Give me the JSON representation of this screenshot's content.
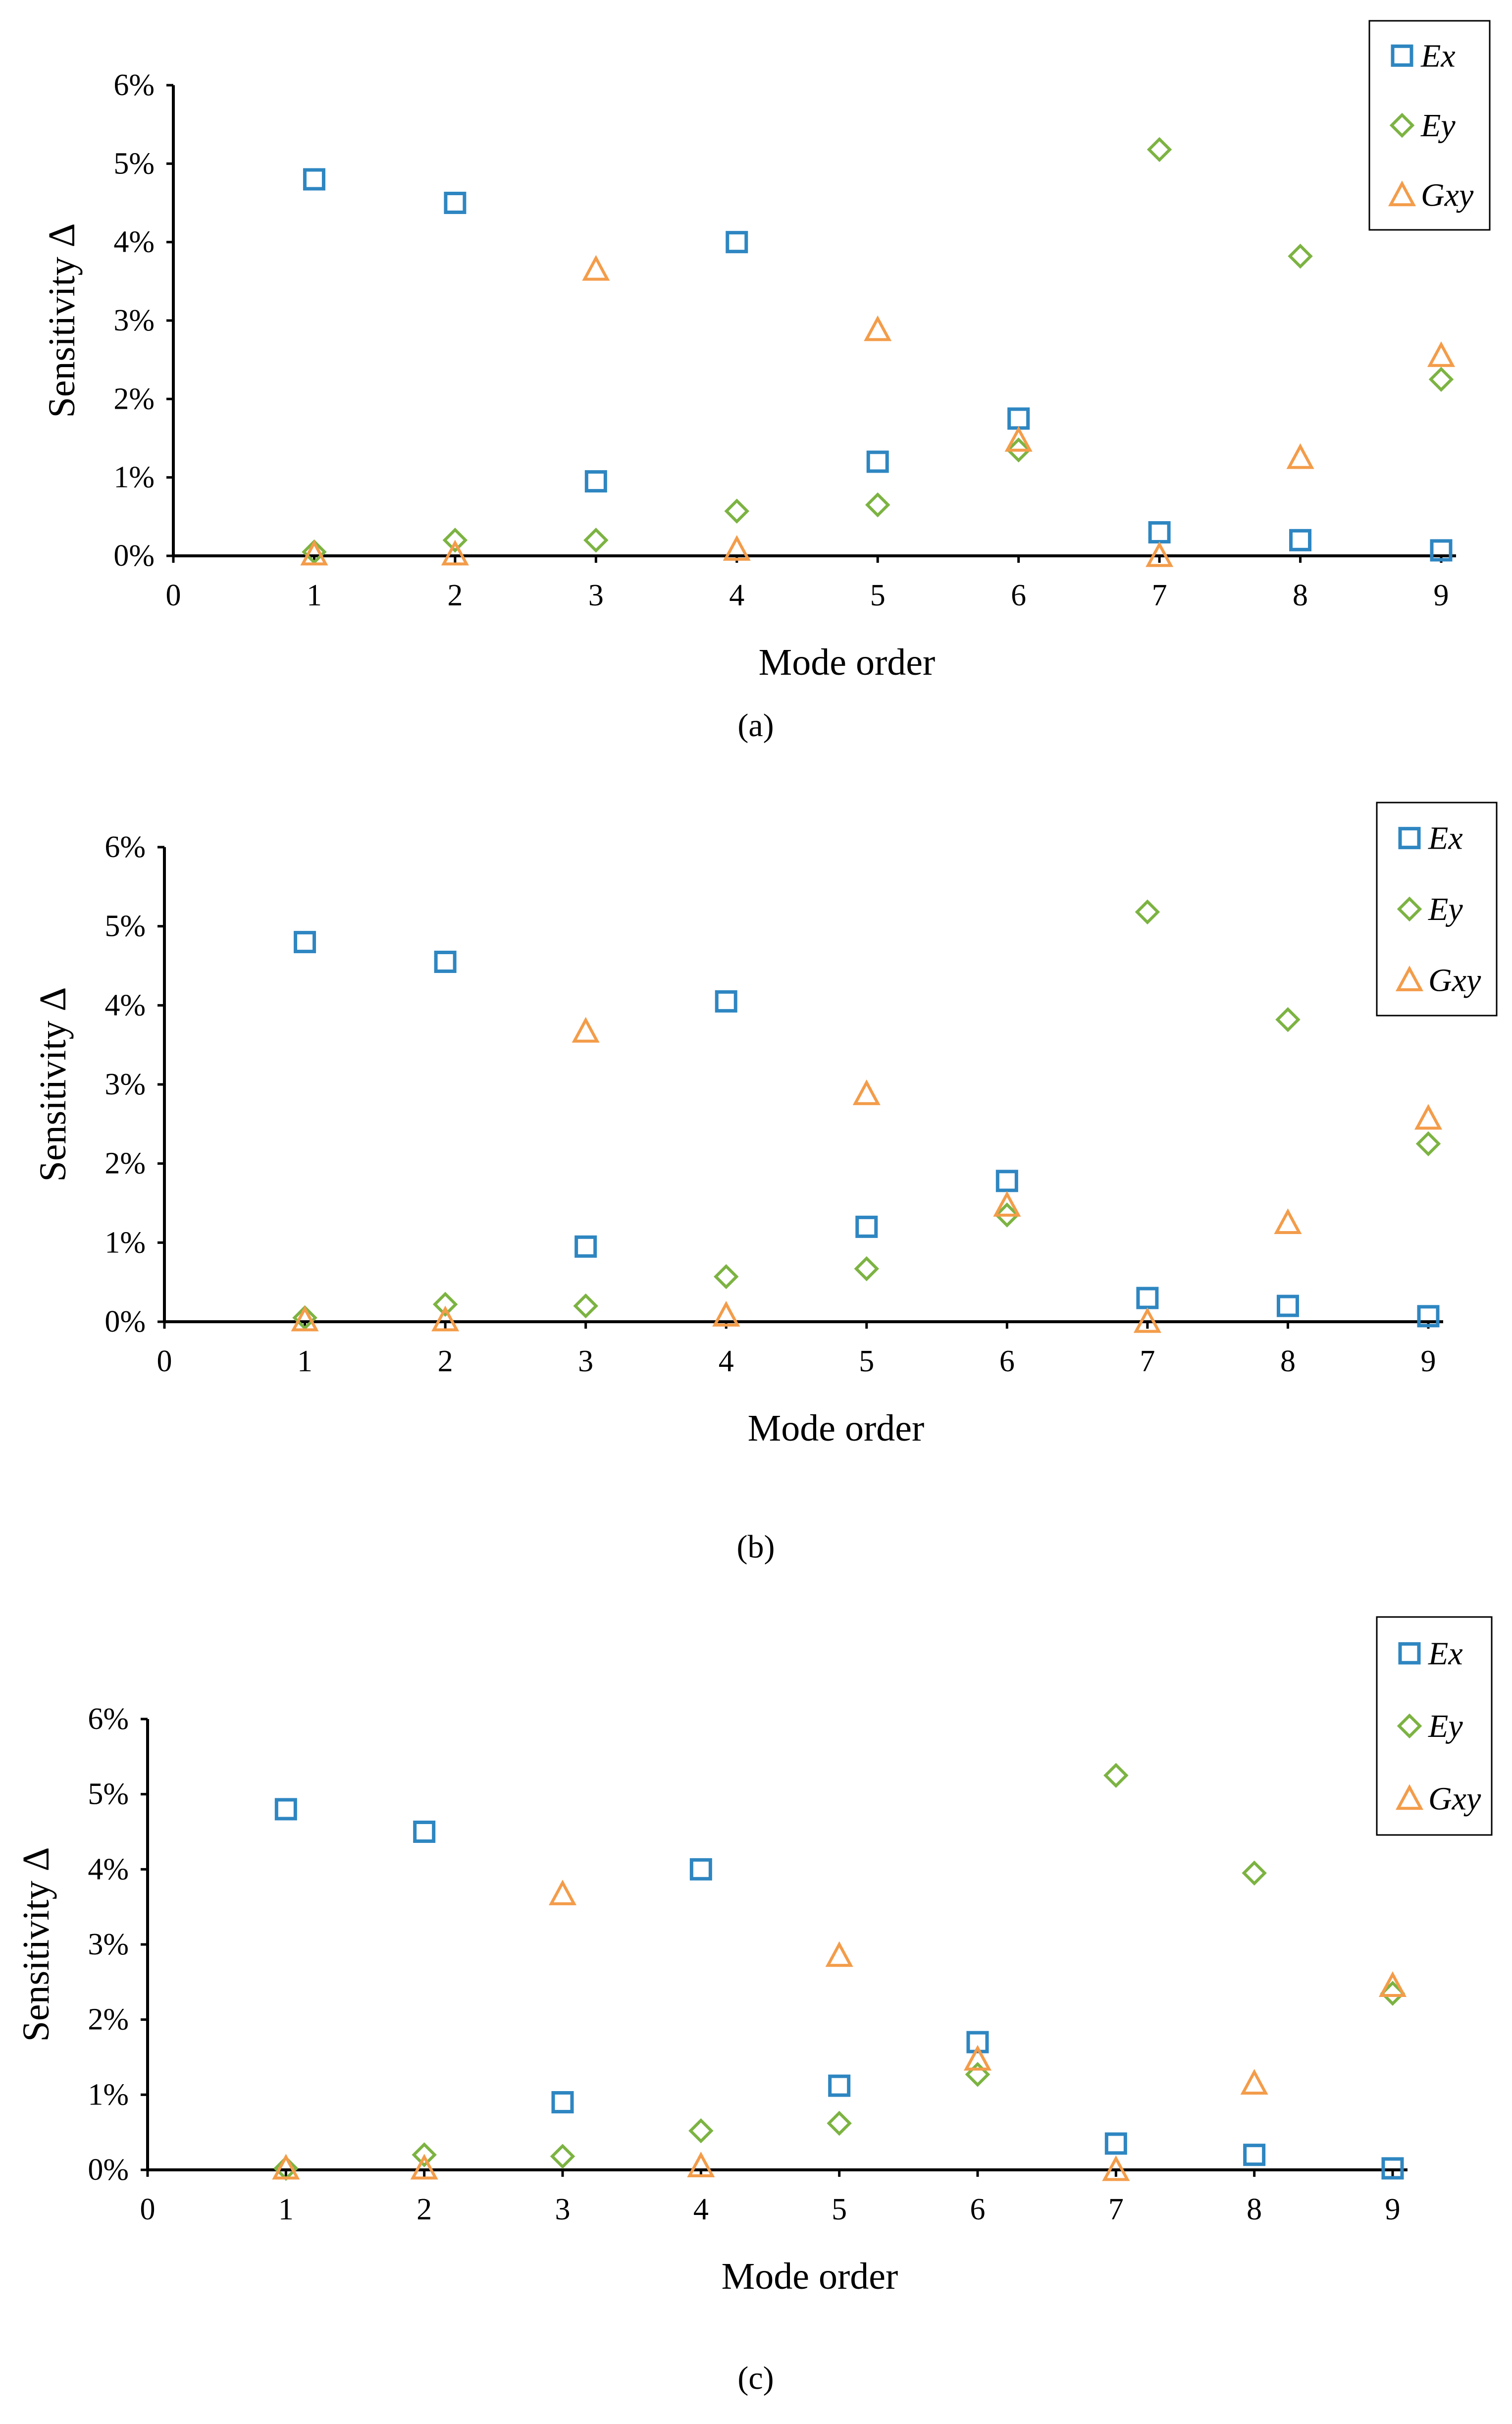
{
  "figure": {
    "panels": [
      "(a)",
      "(b)",
      "(c)"
    ]
  },
  "colors": {
    "Ex": "#2E86C1",
    "Ey": "#7CB342",
    "Gxy": "#F39C4A",
    "axis": "#000000"
  },
  "chart_data": [
    {
      "type": "scatter",
      "caption": "(a)",
      "title": "",
      "xlabel": "Mode order",
      "ylabel": "Sensitivity Δ",
      "xlim": [
        0,
        9
      ],
      "ylim": [
        0,
        6
      ],
      "x_ticks": [
        "0",
        "1",
        "2",
        "3",
        "4",
        "5",
        "6",
        "7",
        "8",
        "9"
      ],
      "y_ticks": [
        "0%",
        "1%",
        "2%",
        "3%",
        "4%",
        "5%",
        "6%"
      ],
      "legend_position": "top-right",
      "x": [
        1,
        2,
        3,
        4,
        5,
        6,
        7,
        8,
        9
      ],
      "series": [
        {
          "name": "Ex",
          "marker": "square",
          "values": [
            4.8,
            4.5,
            0.95,
            4.0,
            1.2,
            1.75,
            0.3,
            0.2,
            0.07
          ]
        },
        {
          "name": "Ey",
          "marker": "diamond",
          "values": [
            0.05,
            0.2,
            0.2,
            0.57,
            0.65,
            1.35,
            5.18,
            3.82,
            2.25
          ]
        },
        {
          "name": "Gxy",
          "marker": "triangle",
          "values": [
            0.02,
            0.02,
            3.65,
            0.08,
            2.88,
            1.47,
            0.0,
            1.25,
            2.55
          ]
        }
      ]
    },
    {
      "type": "scatter",
      "caption": "(b)",
      "title": "",
      "xlabel": "Mode order",
      "ylabel": "Sensitivity Δ",
      "xlim": [
        0,
        9
      ],
      "ylim": [
        0,
        6
      ],
      "x_ticks": [
        "0",
        "1",
        "2",
        "3",
        "4",
        "5",
        "6",
        "7",
        "8",
        "9"
      ],
      "y_ticks": [
        "0%",
        "1%",
        "2%",
        "3%",
        "4%",
        "5%",
        "6%"
      ],
      "legend_position": "top-right",
      "x": [
        1,
        2,
        3,
        4,
        5,
        6,
        7,
        8,
        9
      ],
      "series": [
        {
          "name": "Ex",
          "marker": "square",
          "values": [
            4.8,
            4.55,
            0.95,
            4.05,
            1.2,
            1.78,
            0.3,
            0.2,
            0.07
          ]
        },
        {
          "name": "Ey",
          "marker": "diamond",
          "values": [
            0.05,
            0.22,
            0.2,
            0.57,
            0.67,
            1.35,
            5.18,
            3.82,
            2.25
          ]
        },
        {
          "name": "Gxy",
          "marker": "triangle",
          "values": [
            0.02,
            0.02,
            3.67,
            0.08,
            2.88,
            1.47,
            0.0,
            1.25,
            2.57
          ]
        }
      ]
    },
    {
      "type": "scatter",
      "caption": "(c)",
      "title": "",
      "xlabel": "Mode order",
      "ylabel": "Sensitivity Δ",
      "xlim": [
        0,
        9
      ],
      "ylim": [
        0,
        6
      ],
      "x_ticks": [
        "0",
        "1",
        "2",
        "3",
        "4",
        "5",
        "6",
        "7",
        "8",
        "9"
      ],
      "y_ticks": [
        "0%",
        "1%",
        "2%",
        "3%",
        "4%",
        "5%",
        "6%"
      ],
      "legend_position": "top-right",
      "x": [
        1,
        2,
        3,
        4,
        5,
        6,
        7,
        8,
        9
      ],
      "series": [
        {
          "name": "Ex",
          "marker": "square",
          "values": [
            4.8,
            4.5,
            0.9,
            4.0,
            1.12,
            1.7,
            0.35,
            0.2,
            0.02
          ]
        },
        {
          "name": "Ey",
          "marker": "diamond",
          "values": [
            0.02,
            0.2,
            0.18,
            0.52,
            0.62,
            1.27,
            5.25,
            3.95,
            2.35
          ]
        },
        {
          "name": "Gxy",
          "marker": "triangle",
          "values": [
            0.02,
            0.02,
            3.67,
            0.05,
            2.85,
            1.47,
            0.0,
            1.15,
            2.45
          ]
        }
      ]
    }
  ]
}
